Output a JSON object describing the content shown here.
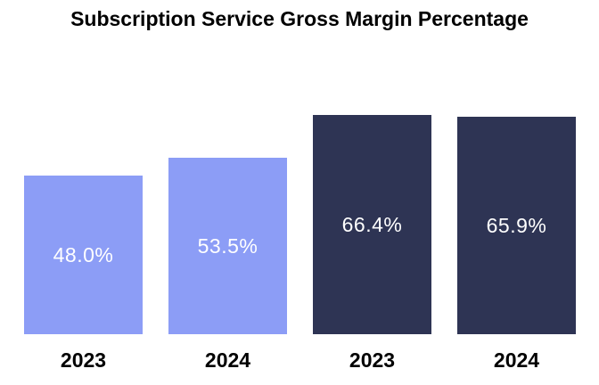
{
  "chart_data": {
    "type": "bar",
    "title": "Subscription Service Gross Margin Percentage",
    "categories": [
      "2023",
      "2024",
      "2023",
      "2024"
    ],
    "values": [
      48.0,
      53.5,
      66.4,
      65.9
    ],
    "value_labels": [
      "48.0%",
      "53.5%",
      "66.4%",
      "65.9%"
    ],
    "bar_colors": [
      "#8C9DF6",
      "#8C9DF6",
      "#2E3454",
      "#2E3454"
    ],
    "value_label_color": "#FFFFFF",
    "title_color": "#000000",
    "tick_label_color": "#000000",
    "background_color": "#FFFFFF",
    "xlabel": "",
    "ylabel": "",
    "ylim": [
      0,
      100
    ],
    "grid": false,
    "legend": null
  }
}
